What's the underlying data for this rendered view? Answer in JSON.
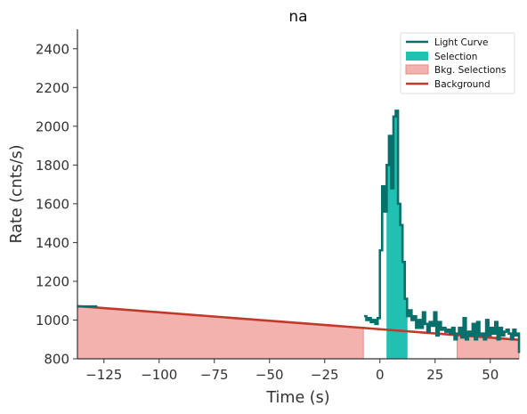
{
  "chart_data": {
    "type": "line",
    "title": "na",
    "xlabel": "Time (s)",
    "ylabel": "Rate (cnts/s)",
    "xlim": [
      -137,
      63
    ],
    "ylim": [
      800,
      2500
    ],
    "xticks": [
      -125,
      -100,
      -75,
      -50,
      -25,
      0,
      25,
      50
    ],
    "xtick_labels": [
      "−125",
      "−100",
      "−75",
      "−50",
      "−25",
      "0",
      "25",
      "50"
    ],
    "yticks": [
      800,
      1000,
      1200,
      1400,
      1600,
      1800,
      2000,
      2200,
      2400
    ],
    "ytick_labels": [
      "800",
      "1000",
      "1200",
      "1400",
      "1600",
      "1800",
      "2000",
      "2200",
      "2400"
    ],
    "grid": false,
    "legend_position": "top-right",
    "legend": {
      "light_curve": "Light Curve",
      "selection": "Selection",
      "bkg_selections": "Bkg. Selections",
      "background": "Background"
    },
    "colors": {
      "light_curve": "#08706a",
      "selection": "#20c1b2",
      "bkg_selections": "#f4b2ae",
      "bkg_edge": "#e58a84",
      "background": "#c0392b"
    },
    "light_curve_pre": {
      "x_start": -137,
      "x_end": -128,
      "value": 1070
    },
    "light_curve": {
      "bin_width": 1.024,
      "start": -7.168,
      "values": [
        1020,
        1000,
        1010,
        990,
        1000,
        980,
        1010,
        1360,
        1690,
        1560,
        1800,
        1950,
        1680,
        2050,
        2080,
        1600,
        1490,
        1300,
        1110,
        1020,
        1050,
        1000,
        1020,
        960,
        1000,
        960,
        1040,
        980,
        940,
        990,
        970,
        1040,
        920,
        990,
        950,
        960,
        940,
        950,
        930,
        960,
        900,
        930,
        960,
        910,
        1010,
        900,
        940,
        920,
        980,
        900,
        990,
        920,
        930,
        900,
        1000,
        920,
        960,
        930,
        990,
        900,
        960,
        920,
        940,
        950,
        930,
        900,
        950,
        920,
        930,
        890,
        830
      ]
    },
    "selection": {
      "x_start": 3.0,
      "x_end": 12.5
    },
    "bkg_selections": [
      {
        "x_start": -137,
        "x_end": -7.5
      },
      {
        "x_start": 35,
        "x_end": 63
      }
    ],
    "background_line": {
      "x": [
        -137,
        63
      ],
      "y": [
        1072,
        898
      ]
    }
  }
}
